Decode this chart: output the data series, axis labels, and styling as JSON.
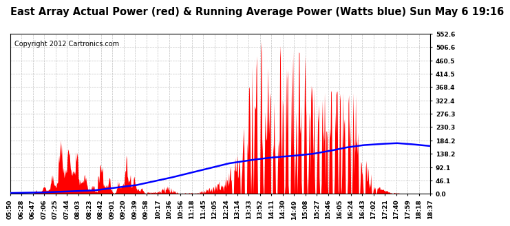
{
  "title": "East Array Actual Power (red) & Running Average Power (Watts blue) Sun May 6 19:16",
  "copyright": "Copyright 2012 Cartronics.com",
  "yticks": [
    0.0,
    46.1,
    92.1,
    138.2,
    184.2,
    230.3,
    276.3,
    322.4,
    368.4,
    414.5,
    460.5,
    506.6,
    552.6
  ],
  "xtick_labels": [
    "05:50",
    "06:28",
    "06:47",
    "07:06",
    "07:25",
    "07:44",
    "08:03",
    "08:23",
    "08:42",
    "09:01",
    "09:20",
    "09:39",
    "09:58",
    "10:17",
    "10:36",
    "10:56",
    "11:18",
    "11:45",
    "12:05",
    "12:24",
    "13:14",
    "13:33",
    "13:52",
    "14:11",
    "14:30",
    "14:49",
    "15:08",
    "15:27",
    "15:46",
    "16:05",
    "16:24",
    "16:43",
    "17:02",
    "17:21",
    "17:40",
    "17:59",
    "18:18",
    "18:37"
  ],
  "bg_color": "#ffffff",
  "fill_color": "#ff0000",
  "line_color": "#0000ff",
  "grid_color": "#c0c0c0",
  "title_fontsize": 10.5,
  "copyright_fontsize": 7,
  "tick_fontsize": 6.5,
  "ymax": 552.6,
  "blue_line_points": [
    [
      0.0,
      3
    ],
    [
      0.08,
      5
    ],
    [
      0.2,
      12
    ],
    [
      0.3,
      30
    ],
    [
      0.38,
      55
    ],
    [
      0.45,
      80
    ],
    [
      0.52,
      105
    ],
    [
      0.58,
      118
    ],
    [
      0.62,
      125
    ],
    [
      0.68,
      132
    ],
    [
      0.72,
      138
    ],
    [
      0.76,
      148
    ],
    [
      0.8,
      160
    ],
    [
      0.84,
      168
    ],
    [
      0.88,
      172
    ],
    [
      0.92,
      175
    ],
    [
      0.95,
      172
    ],
    [
      1.0,
      165
    ]
  ]
}
